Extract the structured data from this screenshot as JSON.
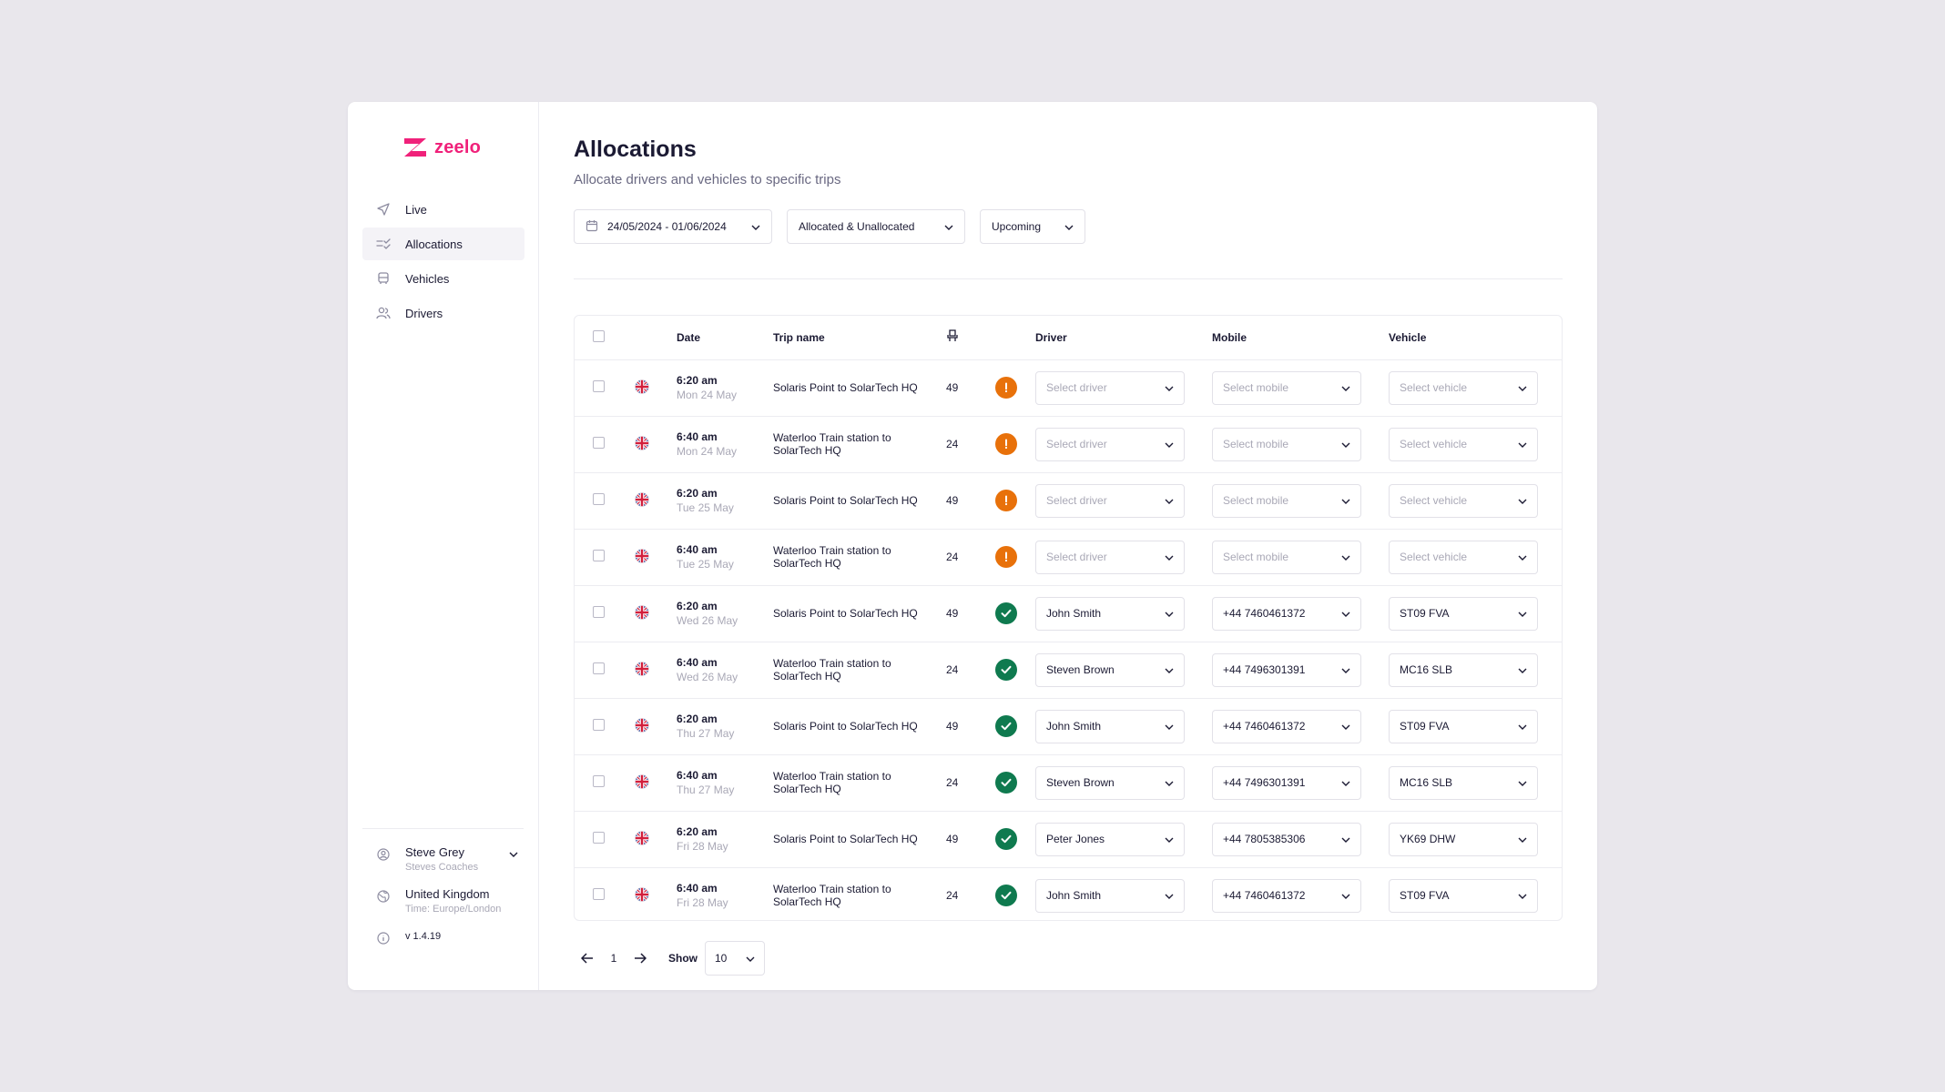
{
  "brand": {
    "name": "zeelo",
    "color": "#f0217a"
  },
  "nav": [
    {
      "label": "Live",
      "icon": "send-icon",
      "active": false
    },
    {
      "label": "Allocations",
      "icon": "allocations-icon",
      "active": true
    },
    {
      "label": "Vehicles",
      "icon": "bus-icon",
      "active": false
    },
    {
      "label": "Drivers",
      "icon": "users-icon",
      "active": false
    }
  ],
  "account": {
    "name": "Steve Grey",
    "company": "Steves Coaches"
  },
  "region": {
    "country": "United Kingdom",
    "timezone": "Time: Europe/London"
  },
  "version": "v 1.4.19",
  "page": {
    "title": "Allocations",
    "subtitle": "Allocate drivers and vehicles to specific trips"
  },
  "filters": {
    "date_range": "24/05/2024 - 01/06/2024",
    "allocation": "Allocated & Unallocated",
    "timing": "Upcoming"
  },
  "table": {
    "headers": {
      "date": "Date",
      "trip": "Trip name",
      "driver": "Driver",
      "mobile": "Mobile",
      "vehicle": "Vehicle"
    },
    "placeholders": {
      "driver": "Select driver",
      "mobile": "Select mobile",
      "vehicle": "Select vehicle"
    },
    "rows": [
      {
        "time": "6:20 am",
        "day": "Mon 24 May",
        "trip": "Solaris Point to SolarTech HQ",
        "seats": "49",
        "status": "warn",
        "driver": "",
        "mobile": "",
        "vehicle": ""
      },
      {
        "time": "6:40 am",
        "day": "Mon 24 May",
        "trip": "Waterloo Train station to SolarTech HQ",
        "seats": "24",
        "status": "warn",
        "driver": "",
        "mobile": "",
        "vehicle": ""
      },
      {
        "time": "6:20 am",
        "day": "Tue 25 May",
        "trip": "Solaris Point to SolarTech HQ",
        "seats": "49",
        "status": "warn",
        "driver": "",
        "mobile": "",
        "vehicle": ""
      },
      {
        "time": "6:40 am",
        "day": "Tue 25 May",
        "trip": "Waterloo Train station to SolarTech HQ",
        "seats": "24",
        "status": "warn",
        "driver": "",
        "mobile": "",
        "vehicle": ""
      },
      {
        "time": "6:20 am",
        "day": "Wed 26 May",
        "trip": "Solaris Point to SolarTech HQ",
        "seats": "49",
        "status": "ok",
        "driver": "John Smith",
        "mobile": "+44 7460461372",
        "vehicle": "ST09 FVA"
      },
      {
        "time": "6:40 am",
        "day": "Wed 26 May",
        "trip": "Waterloo Train station to SolarTech HQ",
        "seats": "24",
        "status": "ok",
        "driver": "Steven Brown",
        "mobile": "+44 7496301391",
        "vehicle": "MC16 SLB"
      },
      {
        "time": "6:20 am",
        "day": "Thu 27 May",
        "trip": "Solaris Point to SolarTech HQ",
        "seats": "49",
        "status": "ok",
        "driver": "John Smith",
        "mobile": "+44 7460461372",
        "vehicle": "ST09 FVA"
      },
      {
        "time": "6:40 am",
        "day": "Thu 27 May",
        "trip": "Waterloo Train station to SolarTech HQ",
        "seats": "24",
        "status": "ok",
        "driver": "Steven Brown",
        "mobile": "+44 7496301391",
        "vehicle": "MC16 SLB"
      },
      {
        "time": "6:20 am",
        "day": "Fri 28 May",
        "trip": "Solaris Point to SolarTech HQ",
        "seats": "49",
        "status": "ok",
        "driver": "Peter Jones",
        "mobile": "+44 7805385306",
        "vehicle": "YK69 DHW"
      },
      {
        "time": "6:40 am",
        "day": "Fri 28 May",
        "trip": "Waterloo Train station to SolarTech HQ",
        "seats": "24",
        "status": "ok",
        "driver": "John Smith",
        "mobile": "+44 7460461372",
        "vehicle": "ST09 FVA"
      }
    ]
  },
  "pagination": {
    "page": "1",
    "show_label": "Show",
    "page_size": "10"
  },
  "colors": {
    "warn": "#e8710a",
    "ok": "#0f7a4f"
  }
}
